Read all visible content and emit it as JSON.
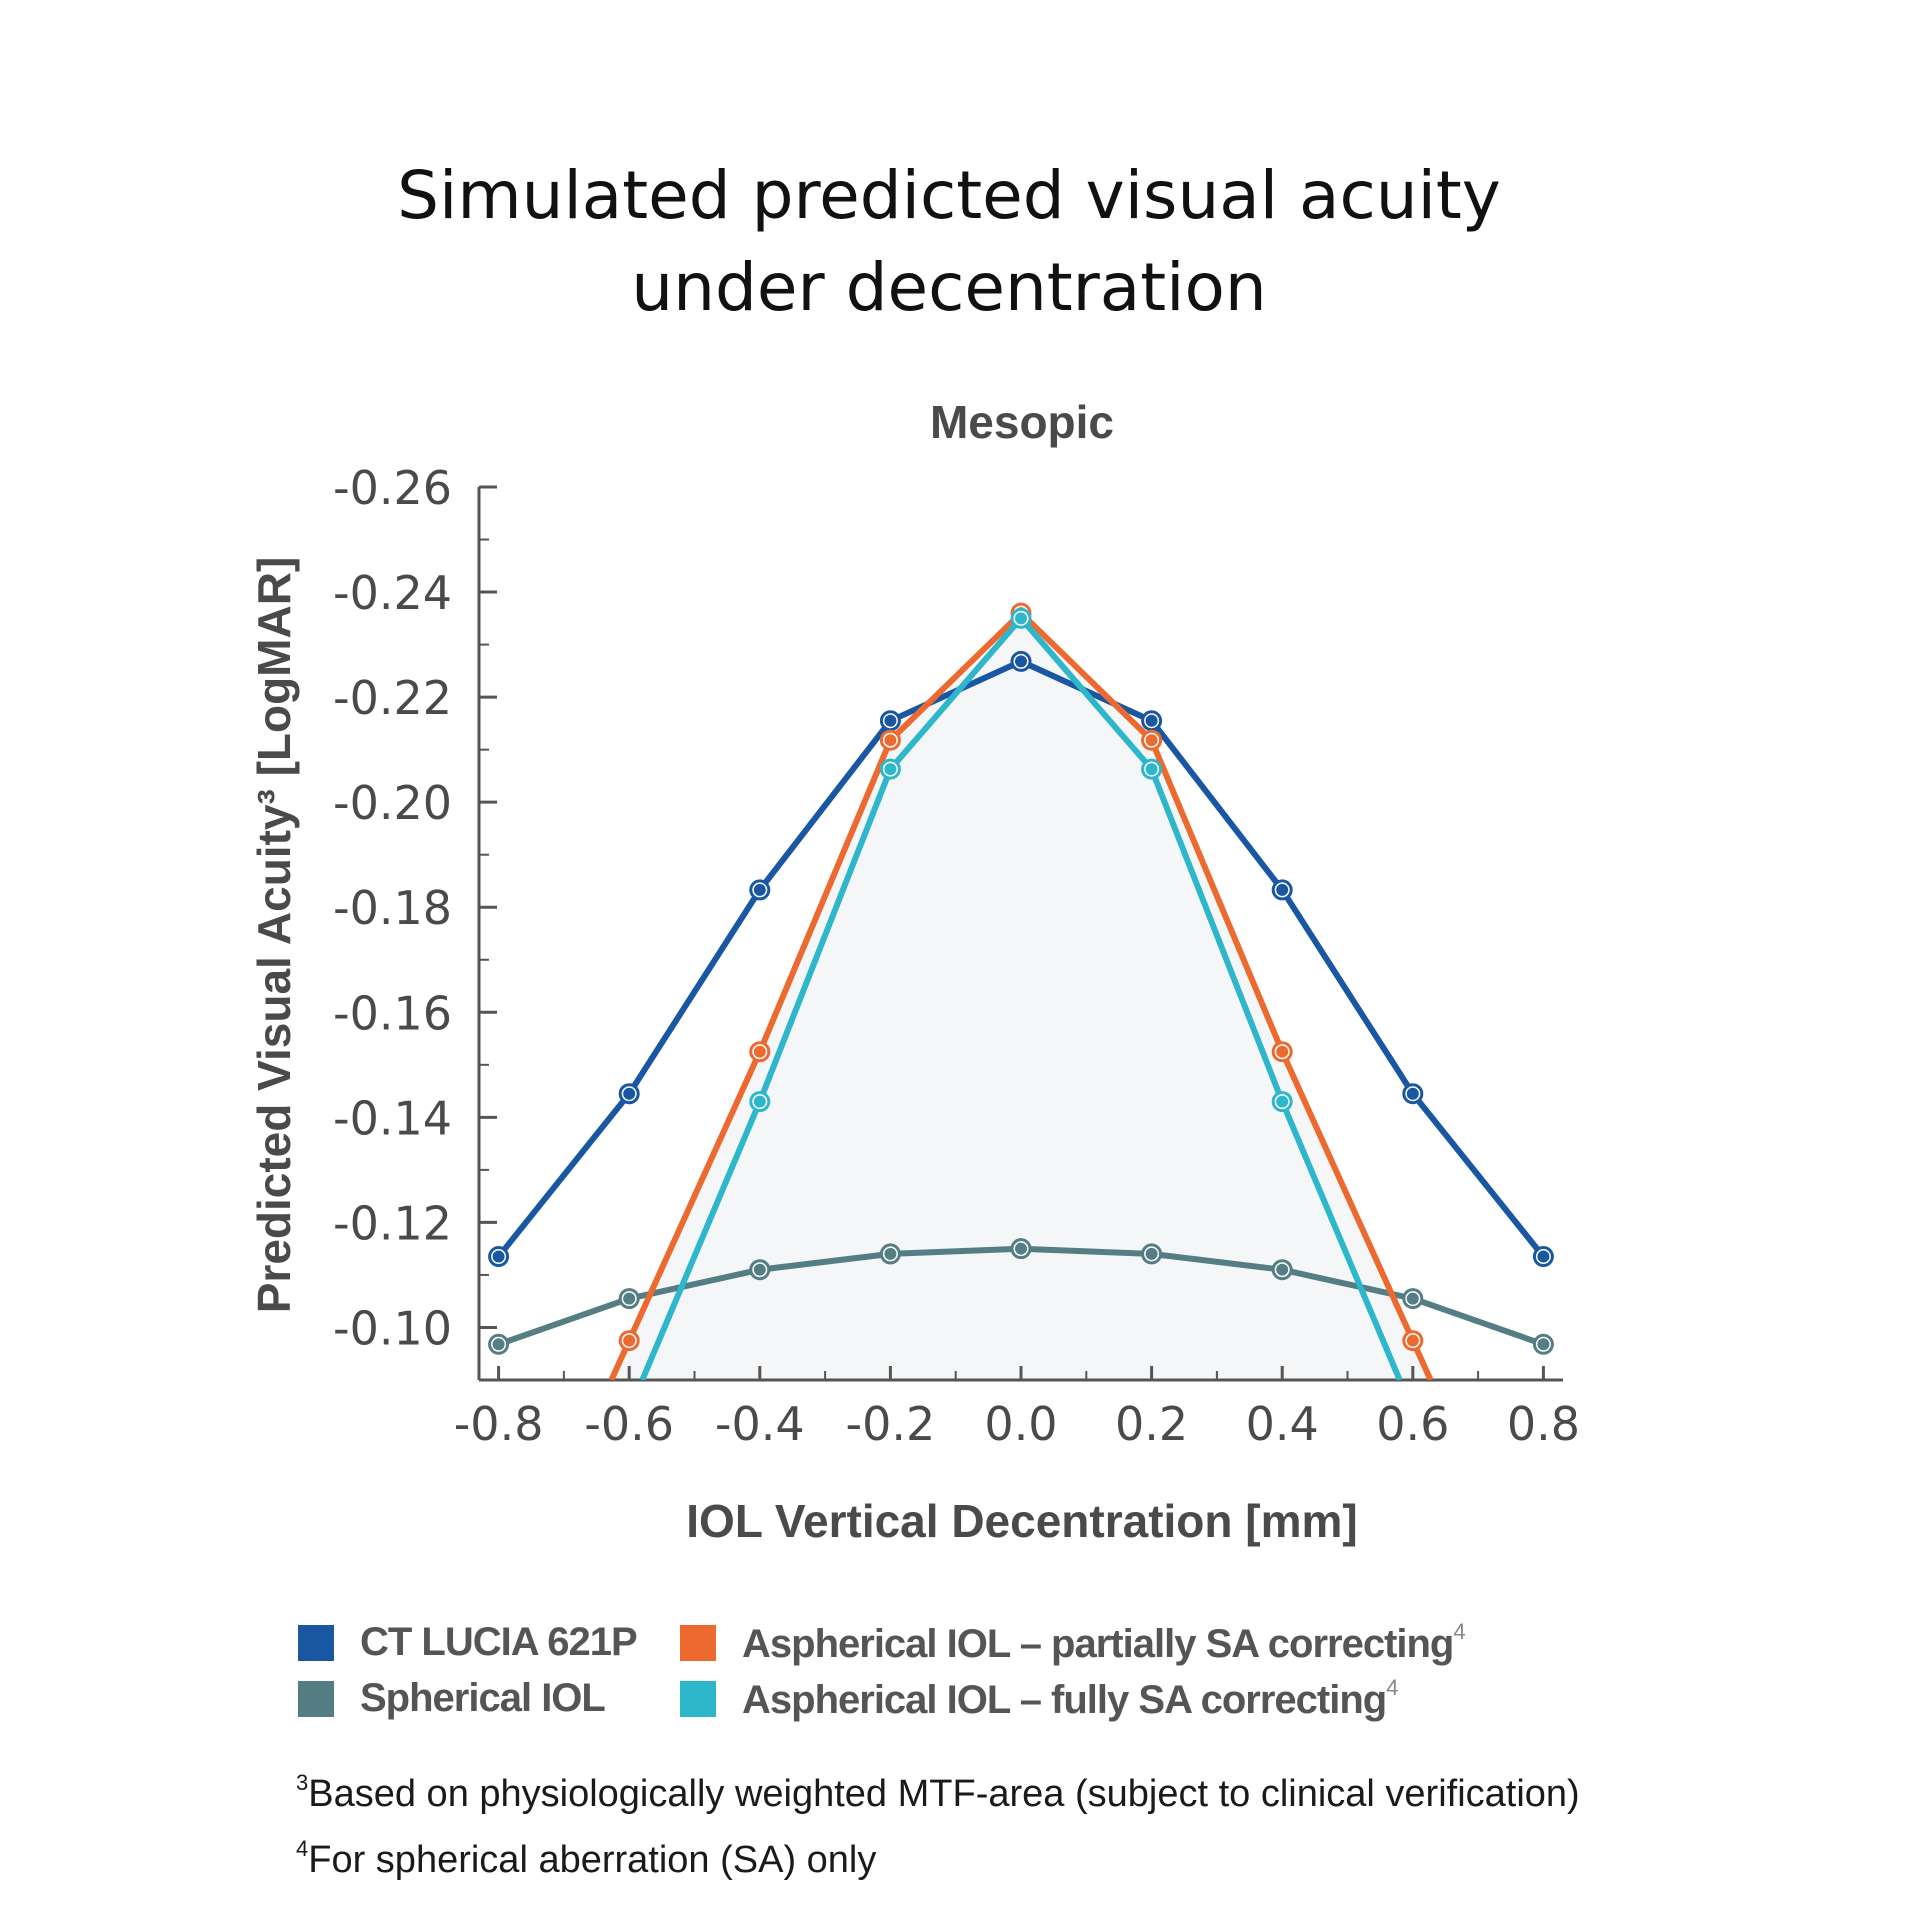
{
  "title_lines": [
    "Simulated predicted visual acuity",
    "under decentration"
  ],
  "colors": {
    "ct_lucia": "#1957a3",
    "spherical": "#547d84",
    "partial": "#ec6a30",
    "full": "#2eb6cb",
    "fill": "#f5f6f8",
    "axis": "#555555",
    "text": "#4a4a4a"
  },
  "chart_data": {
    "type": "line",
    "title": "Mesopic",
    "xlabel": "IOL Vertical Decentration [mm]",
    "ylabel": "Predicted Visual Acuity³ [LogMAR]",
    "xlim": [
      -0.83,
      0.83
    ],
    "ylim": [
      -0.09,
      -0.26
    ],
    "y_axis_reversed": true,
    "x_ticks": [
      -0.8,
      -0.6,
      -0.4,
      -0.2,
      0.0,
      0.2,
      0.4,
      0.6,
      0.8
    ],
    "x_tick_labels": [
      "-0.8",
      "-0.6",
      "-0.4",
      "-0.2",
      "0.0",
      "0.2",
      "0.4",
      "0.6",
      "0.8"
    ],
    "y_ticks": [
      -0.26,
      -0.24,
      -0.22,
      -0.2,
      -0.18,
      -0.16,
      -0.14,
      -0.12,
      -0.1
    ],
    "y_tick_labels": [
      "-0.26",
      "-0.24",
      "-0.22",
      "-0.20",
      "-0.18",
      "-0.16",
      "-0.14",
      "-0.12",
      "-0.10"
    ],
    "grid": false,
    "shaded_area_under": "Aspherical IOL – partially SA correcting",
    "series": [
      {
        "name": "CT LUCIA 621P",
        "color": "#1957a3",
        "x": [
          -0.8,
          -0.6,
          -0.4,
          -0.2,
          0.0,
          0.2,
          0.4,
          0.6,
          0.8
        ],
        "y": [
          -0.1135,
          -0.1445,
          -0.1833,
          -0.2155,
          -0.2268,
          -0.2155,
          -0.1833,
          -0.1445,
          -0.1135
        ]
      },
      {
        "name": "Spherical IOL",
        "color": "#547d84",
        "x": [
          -0.8,
          -0.6,
          -0.4,
          -0.2,
          0.0,
          0.2,
          0.4,
          0.6,
          0.8
        ],
        "y": [
          -0.0968,
          -0.1055,
          -0.111,
          -0.114,
          -0.115,
          -0.114,
          -0.111,
          -0.1055,
          -0.0968
        ]
      },
      {
        "name": "Aspherical IOL – partially SA correcting",
        "color": "#ec6a30",
        "x": [
          -0.6,
          -0.4,
          -0.2,
          0.0,
          0.2,
          0.4,
          0.6
        ],
        "y": [
          -0.0975,
          -0.1525,
          -0.2118,
          -0.236,
          -0.2118,
          -0.1525,
          -0.0975
        ],
        "extends_below_axis": true
      },
      {
        "name": "Aspherical IOL – fully SA correcting",
        "color": "#2eb6cb",
        "x": [
          -0.4,
          -0.2,
          0.0,
          0.2,
          0.4
        ],
        "y": [
          -0.143,
          -0.2063,
          -0.235,
          -0.2063,
          -0.143
        ],
        "line_endpoints_y": -0.09,
        "line_endpoints_x": [
          -0.58,
          0.58
        ],
        "extends_below_axis": true
      }
    ]
  },
  "legend": [
    {
      "label": "CT LUCIA 621P",
      "sup": "",
      "color": "#1957a3"
    },
    {
      "label": "Spherical IOL",
      "sup": "",
      "color": "#547d84"
    },
    {
      "label": "Aspherical IOL – partially SA correcting",
      "sup": "4",
      "color": "#ec6a30"
    },
    {
      "label": "Aspherical IOL – fully SA correcting",
      "sup": "4",
      "color": "#2eb6cb"
    }
  ],
  "footnotes": [
    {
      "sup": "3",
      "text": "Based on physiologically weighted MTF-area (subject to clinical verification)"
    },
    {
      "sup": "4",
      "text": "For spherical aberration (SA) only"
    }
  ]
}
